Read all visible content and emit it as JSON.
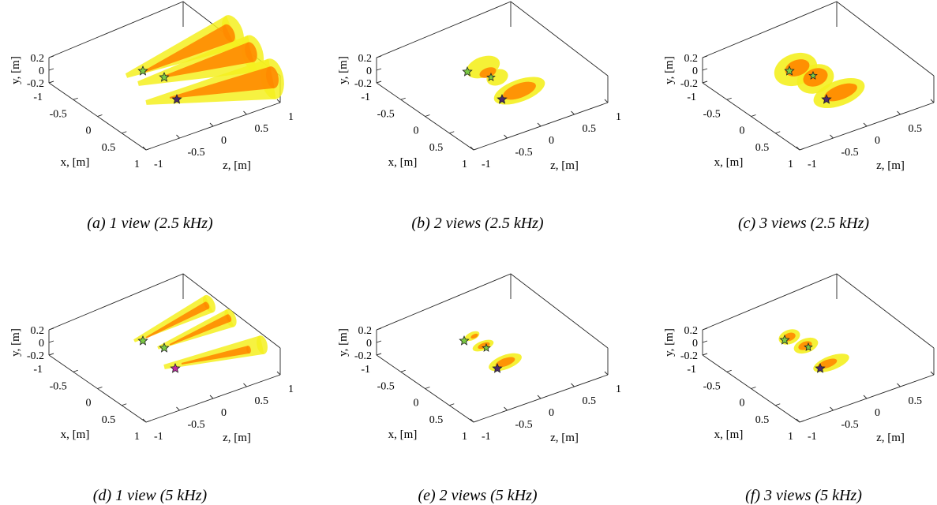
{
  "figure": {
    "panels": [
      {
        "id": "a",
        "caption": "(a) 1 view (2.5 kHz)",
        "views": 1,
        "frequency": "2.5 kHz"
      },
      {
        "id": "b",
        "caption": "(b) 2 views (2.5 kHz)",
        "views": 2,
        "frequency": "2.5 kHz"
      },
      {
        "id": "c",
        "caption": "(c) 3 views (2.5 kHz)",
        "views": 3,
        "frequency": "2.5 kHz"
      },
      {
        "id": "d",
        "caption": "(d) 1 view (5 kHz)",
        "views": 1,
        "frequency": "5 kHz"
      },
      {
        "id": "e",
        "caption": "(e) 2 views (5 kHz)",
        "views": 2,
        "frequency": "5 kHz"
      },
      {
        "id": "f",
        "caption": "(f) 3 views (5 kHz)",
        "views": 3,
        "frequency": "5 kHz"
      }
    ],
    "axes": {
      "y_label": "y, [m]",
      "x_label": "x, [m]",
      "z_label": "z, [m]",
      "y_ticks": [
        "0.2",
        "0",
        "-0.2"
      ],
      "x_ticks": [
        "-1",
        "-0.5",
        "0",
        "0.5",
        "1"
      ],
      "z_ticks": [
        "-1",
        "-0.5",
        "0",
        "0.5",
        "1"
      ]
    },
    "colors": {
      "outer_region": "#f4f020",
      "inner_region": "#ff8a00",
      "star_green": "#7ac943",
      "star_dark": "#4a2a6a",
      "star_magenta": "#c02aa0"
    }
  }
}
